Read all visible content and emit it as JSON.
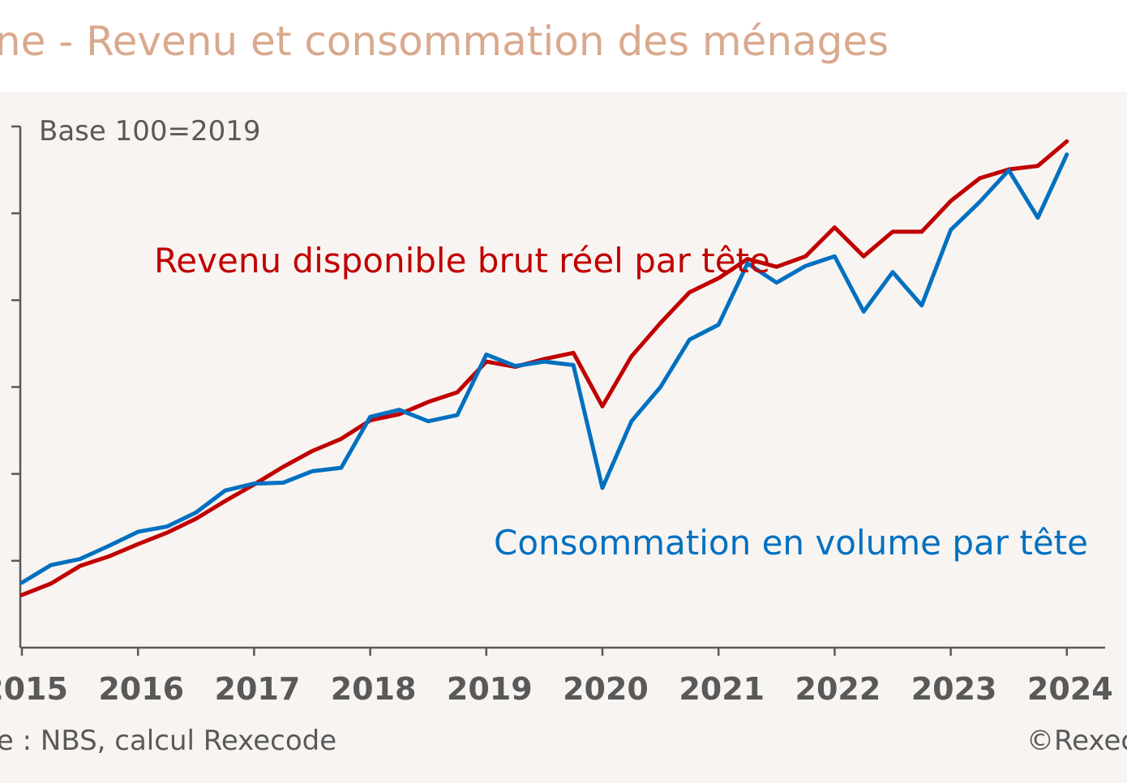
{
  "title": "ine - Revenu et consommation des ménages",
  "source": "rce : NBS, calcul Rexecode",
  "copyright": "©Rexec",
  "colors": {
    "title": "#d9a98e",
    "text": "#595959",
    "axis": "#595959",
    "revenu": "#c00000",
    "consommation": "#0070c0",
    "background": "#f8f4f1"
  },
  "chart_data": {
    "type": "line",
    "title": "ine - Revenu et consommation des ménages",
    "annotation_base": "Base 100=2019",
    "xlabel": "",
    "ylabel": "",
    "grid": false,
    "xlim": [
      2015.0,
      2024.3
    ],
    "ylim": [
      68.4,
      127.8
    ],
    "year_ticks": [
      "2015",
      "2016",
      "2017",
      "2018",
      "2019",
      "2020",
      "2021",
      "2022",
      "2023",
      "2024"
    ],
    "yticks": [
      78.3,
      88.2,
      98.1,
      108.0,
      117.9
    ],
    "series": [
      {
        "name": "Revenu disponible brut réel par tête",
        "label": "Revenu disponible brut réel par tête",
        "color": "#c00000",
        "x": [
          2015.0,
          2015.25,
          2015.5,
          2015.75,
          2016.0,
          2016.25,
          2016.5,
          2016.75,
          2017.0,
          2017.25,
          2017.5,
          2017.75,
          2018.0,
          2018.25,
          2018.5,
          2018.75,
          2019.0,
          2019.25,
          2019.5,
          2019.75,
          2020.0,
          2020.25,
          2020.5,
          2020.75,
          2021.0,
          2021.25,
          2021.5,
          2021.75,
          2022.0,
          2022.25,
          2022.5,
          2022.75,
          2023.0,
          2023.25,
          2023.5,
          2023.75,
          2024.0
        ],
        "values": [
          74.4,
          75.7,
          77.7,
          78.8,
          80.2,
          81.5,
          83.1,
          85.1,
          87.0,
          89.0,
          90.8,
          92.2,
          94.3,
          95.0,
          96.4,
          97.5,
          101.0,
          100.4,
          101.3,
          102.0,
          95.9,
          101.6,
          105.4,
          108.9,
          110.5,
          112.7,
          111.8,
          113.0,
          116.3,
          113.0,
          115.8,
          115.8,
          119.3,
          121.9,
          122.9,
          123.3,
          126.1
        ]
      },
      {
        "name": "Consommation en volume par tête",
        "label": "Consommation en volume par tête",
        "color": "#0070c0",
        "x": [
          2015.0,
          2015.25,
          2015.5,
          2015.75,
          2016.0,
          2016.25,
          2016.5,
          2016.75,
          2017.0,
          2017.25,
          2017.5,
          2017.75,
          2018.0,
          2018.25,
          2018.5,
          2018.75,
          2019.0,
          2019.25,
          2019.5,
          2019.75,
          2020.0,
          2020.25,
          2020.5,
          2020.75,
          2021.0,
          2021.25,
          2021.5,
          2021.75,
          2022.0,
          2022.25,
          2022.5,
          2022.75,
          2023.0,
          2023.25,
          2023.5,
          2023.75,
          2024.0
        ],
        "values": [
          75.8,
          77.8,
          78.5,
          80.0,
          81.6,
          82.2,
          83.8,
          86.3,
          87.1,
          87.2,
          88.5,
          88.9,
          94.7,
          95.5,
          94.2,
          94.9,
          101.8,
          100.5,
          101.0,
          100.6,
          86.6,
          94.2,
          98.1,
          103.5,
          105.2,
          112.2,
          110.0,
          111.9,
          113.0,
          106.7,
          111.2,
          107.4,
          116.0,
          119.2,
          122.8,
          117.4,
          124.6
        ]
      }
    ]
  }
}
